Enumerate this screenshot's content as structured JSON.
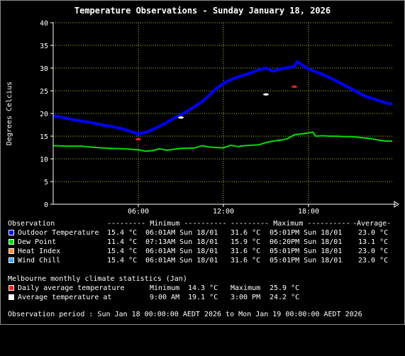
{
  "chart_data": {
    "type": "line",
    "title": "Temperature Observations - Sunday January 18, 2026",
    "ylabel": "Degrees Celcius",
    "xlabel": "",
    "ylim": [
      0,
      40
    ],
    "xlim_hours": [
      0,
      24
    ],
    "y_ticks": [
      0,
      5,
      10,
      15,
      20,
      25,
      30,
      35,
      40
    ],
    "x_ticks": [
      {
        "hour": 6,
        "label": "06:00"
      },
      {
        "hour": 12,
        "label": "12:00"
      },
      {
        "hour": 18,
        "label": "18:00"
      }
    ],
    "grid": true,
    "series": [
      {
        "name": "Outdoor Temperature",
        "color": "#0000ff",
        "points": [
          [
            0.0,
            19.5
          ],
          [
            0.5,
            19.2
          ],
          [
            1.0,
            18.9
          ],
          [
            1.5,
            18.6
          ],
          [
            2.0,
            18.3
          ],
          [
            2.5,
            18.1
          ],
          [
            3.0,
            17.8
          ],
          [
            3.5,
            17.4
          ],
          [
            4.0,
            17.2
          ],
          [
            4.5,
            16.9
          ],
          [
            5.0,
            16.5
          ],
          [
            5.5,
            16.0
          ],
          [
            6.0,
            15.5
          ],
          [
            6.5,
            15.8
          ],
          [
            7.0,
            16.4
          ],
          [
            7.5,
            17.2
          ],
          [
            8.0,
            18.0
          ],
          [
            8.5,
            18.9
          ],
          [
            9.0,
            19.7
          ],
          [
            9.5,
            20.6
          ],
          [
            10.0,
            21.6
          ],
          [
            10.5,
            22.6
          ],
          [
            11.0,
            24.0
          ],
          [
            11.5,
            25.5
          ],
          [
            12.0,
            26.6
          ],
          [
            12.5,
            27.4
          ],
          [
            13.0,
            28.0
          ],
          [
            13.5,
            28.5
          ],
          [
            14.0,
            29.0
          ],
          [
            14.5,
            29.6
          ],
          [
            15.0,
            30.0
          ],
          [
            15.5,
            29.3
          ],
          [
            16.0,
            29.8
          ],
          [
            16.5,
            30.1
          ],
          [
            17.0,
            30.3
          ],
          [
            17.2,
            31.4
          ],
          [
            17.6,
            30.6
          ],
          [
            18.0,
            29.8
          ],
          [
            18.5,
            29.2
          ],
          [
            19.0,
            28.6
          ],
          [
            19.5,
            27.9
          ],
          [
            20.0,
            27.1
          ],
          [
            20.5,
            26.3
          ],
          [
            21.0,
            25.5
          ],
          [
            21.5,
            24.6
          ],
          [
            22.0,
            23.8
          ],
          [
            22.5,
            23.3
          ],
          [
            23.0,
            22.8
          ],
          [
            23.5,
            22.3
          ],
          [
            23.9,
            22.1
          ]
        ]
      },
      {
        "name": "Dew Point",
        "color": "#00dd00",
        "points": [
          [
            0.0,
            12.9
          ],
          [
            1.0,
            12.8
          ],
          [
            2.0,
            12.8
          ],
          [
            3.0,
            12.5
          ],
          [
            4.0,
            12.3
          ],
          [
            5.0,
            12.2
          ],
          [
            6.0,
            12.0
          ],
          [
            6.5,
            11.7
          ],
          [
            7.0,
            11.8
          ],
          [
            7.5,
            12.2
          ],
          [
            8.0,
            11.9
          ],
          [
            9.0,
            12.3
          ],
          [
            10.0,
            12.4
          ],
          [
            10.5,
            12.9
          ],
          [
            11.0,
            12.6
          ],
          [
            12.0,
            12.4
          ],
          [
            12.5,
            13.0
          ],
          [
            13.0,
            12.7
          ],
          [
            13.5,
            12.9
          ],
          [
            14.0,
            13.0
          ],
          [
            14.5,
            13.1
          ],
          [
            15.0,
            13.6
          ],
          [
            15.5,
            13.9
          ],
          [
            16.0,
            14.1
          ],
          [
            16.5,
            14.4
          ],
          [
            17.0,
            15.3
          ],
          [
            17.5,
            15.5
          ],
          [
            18.0,
            15.7
          ],
          [
            18.3,
            15.9
          ],
          [
            18.5,
            15.0
          ],
          [
            19.0,
            15.1
          ],
          [
            19.5,
            15.0
          ],
          [
            20.0,
            15.0
          ],
          [
            20.5,
            14.9
          ],
          [
            21.0,
            14.9
          ],
          [
            22.0,
            14.6
          ],
          [
            22.5,
            14.4
          ],
          [
            23.0,
            14.1
          ],
          [
            23.5,
            13.9
          ],
          [
            23.9,
            13.9
          ]
        ]
      },
      {
        "name": "Heat Index",
        "color": "#ff8c3c",
        "points": []
      },
      {
        "name": "Wind Chill",
        "color": "#4aa3ea",
        "points": []
      }
    ],
    "markers": [
      {
        "name": "Daily average temperature",
        "color": "#ff2020",
        "hour": 6.0,
        "value": 14.3
      },
      {
        "name": "Daily average temperature",
        "color": "#ff2020",
        "hour": 17.0,
        "value": 25.9
      },
      {
        "name": "Average temperature at",
        "color": "#ffffff",
        "hour": 9.0,
        "value": 19.1
      },
      {
        "name": "Average temperature at",
        "color": "#ffffff",
        "hour": 15.0,
        "value": 24.2
      }
    ]
  },
  "table": {
    "header": {
      "observation": "Observation",
      "minimum": "--------- Minimum ----------",
      "maximum": "--------- Maximum ----------",
      "average": "-Average-"
    },
    "rows": [
      {
        "label": "Outdoor Temperature",
        "color": "#0000ff",
        "min_val": "15.4 °C",
        "min_time": "06:01AM Sun 18/01",
        "max_val": "31.6 °C",
        "max_time": "05:01PM Sun 18/01",
        "avg": "23.0 °C"
      },
      {
        "label": "Dew Point",
        "color": "#00dd00",
        "min_val": "11.4 °C",
        "min_time": "07:13AM Sun 18/01",
        "max_val": "15.9 °C",
        "max_time": "06:20PM Sun 18/01",
        "avg": "13.1 °C"
      },
      {
        "label": "Heat Index",
        "color": "#ff8c3c",
        "min_val": "15.4 °C",
        "min_time": "06:01AM Sun 18/01",
        "max_val": "31.6 °C",
        "max_time": "05:01PM Sun 18/01",
        "avg": "23.0 °C"
      },
      {
        "label": "Wind Chill",
        "color": "#4aa3ea",
        "min_val": "15.4 °C",
        "min_time": "06:01AM Sun 18/01",
        "max_val": "31.6 °C",
        "max_time": "05:01PM Sun 18/01",
        "avg": "23.0 °C"
      }
    ]
  },
  "climate": {
    "title": "Melbourne monthly climate statistics (Jan)",
    "rows": [
      {
        "label": "Daily average temperature",
        "color": "#ff2020",
        "lbl1": "Minimum",
        "val1": "14.3 °C",
        "lbl2": "Maximum",
        "val2": "25.9 °C"
      },
      {
        "label": "Average temperature at",
        "color": "#ffffff",
        "lbl1": "9:00 AM",
        "val1": "19.1 °C",
        "lbl2": "3:00 PM",
        "val2": "24.2 °C"
      }
    ]
  },
  "period": "Observation period : Sun Jan 18 00:00:00 AEDT 2026 to Mon Jan 19 00:00:00 AEDT 2026"
}
